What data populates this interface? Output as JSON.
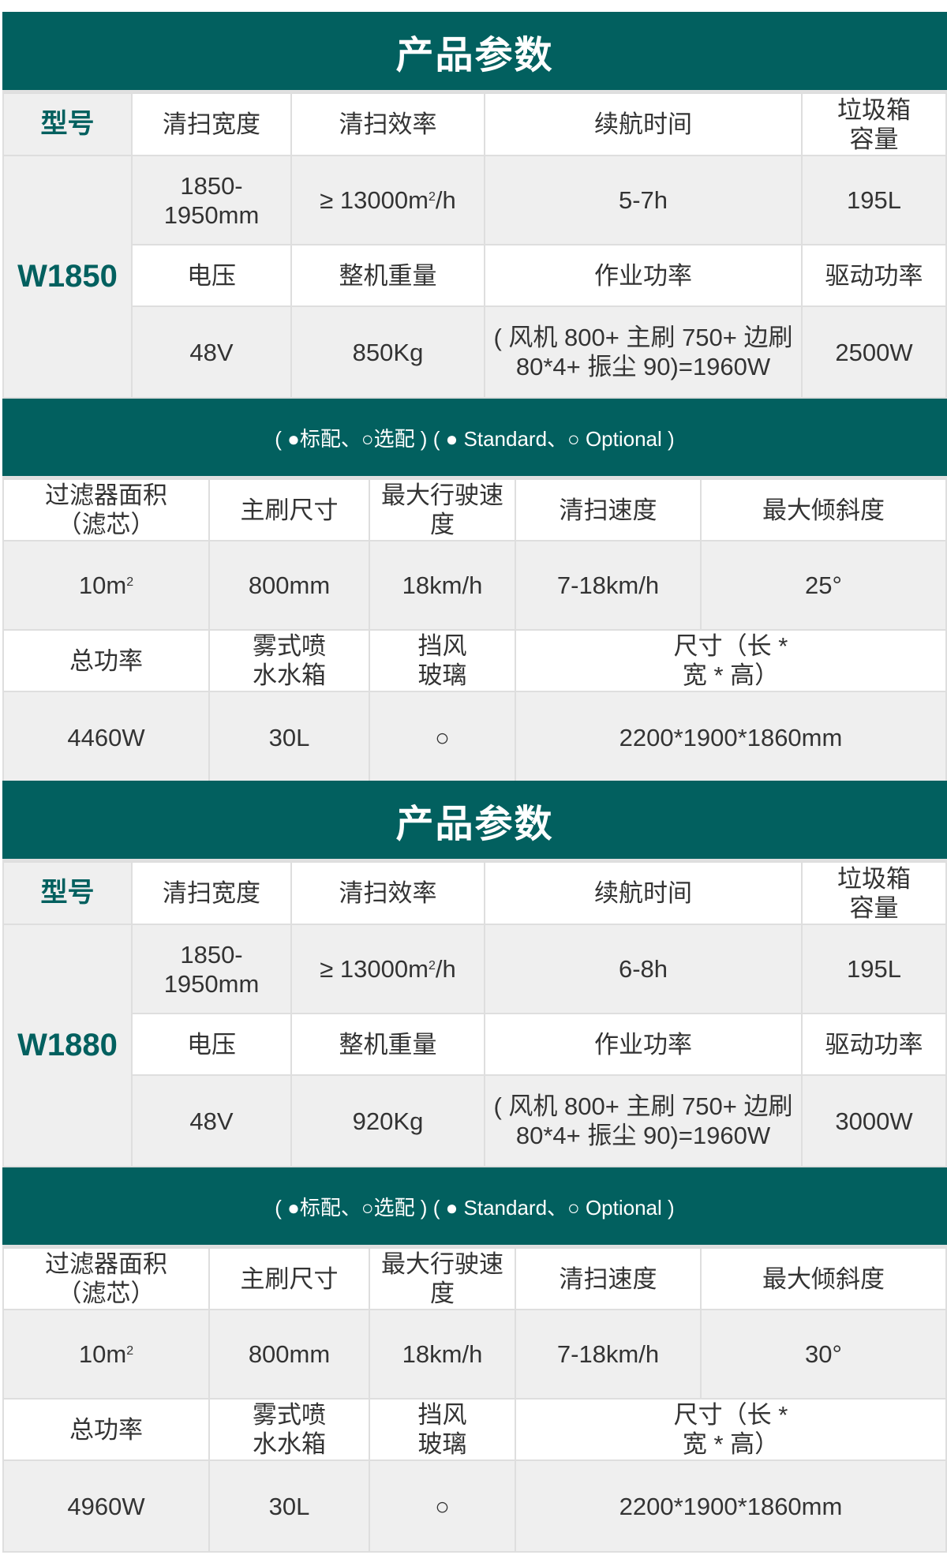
{
  "sections": [
    {
      "title": "产品参数",
      "model_label": "型号",
      "model": "W1850",
      "row1_headers": [
        "清扫宽度",
        "清扫效率",
        "续航时间",
        "垃圾箱容量"
      ],
      "row1_values": [
        "1850-1950mm",
        "≥ 13000m",
        "5-7h",
        "195L"
      ],
      "efficiency_unit": "/h",
      "row2_headers": [
        "电压",
        "整机重量",
        "作业功率",
        "驱动功率"
      ],
      "row2_values": [
        "48V",
        "850Kg",
        "( 风机 800+ 主刷 750+ 边刷 80*4+ 振尘 90)=1960W",
        "2500W"
      ],
      "legend": "( ●标配、○选配 ) ( ● Standard、○ Optional )",
      "row3_headers": [
        "过滤器面积（滤芯）",
        "主刷尺寸",
        "最大行驶速度",
        "清扫速度",
        "最大倾斜度"
      ],
      "row3_values": [
        "10m",
        "800mm",
        "18km/h",
        "7-18km/h",
        "25°"
      ],
      "row4_headers": [
        "总功率",
        "雾式喷水水箱",
        "挡风玻璃",
        "尺寸（长 * 宽 * 高）"
      ],
      "row4_values": [
        "4460W",
        "30L",
        "○",
        "2200*1900*1860mm"
      ],
      "superscript": "2"
    },
    {
      "title": "产品参数",
      "model_label": "型号",
      "model": "W1880",
      "row1_headers": [
        "清扫宽度",
        "清扫效率",
        "续航时间",
        "垃圾箱容量"
      ],
      "row1_values": [
        "1850-1950mm",
        "≥ 13000m",
        "6-8h",
        "195L"
      ],
      "efficiency_unit": "/h",
      "row2_headers": [
        "电压",
        "整机重量",
        "作业功率",
        "驱动功率"
      ],
      "row2_values": [
        "48V",
        "920Kg",
        "( 风机 800+ 主刷 750+ 边刷 80*4+ 振尘 90)=1960W",
        "3000W"
      ],
      "legend": "( ●标配、○选配 ) ( ● Standard、○ Optional )",
      "row3_headers": [
        "过滤器面积（滤芯）",
        "主刷尺寸",
        "最大行驶速度",
        "清扫速度",
        "最大倾斜度"
      ],
      "row3_values": [
        "10m",
        "800mm",
        "18km/h",
        "7-18km/h",
        "30°"
      ],
      "row4_headers": [
        "总功率",
        "雾式喷水水箱",
        "挡风玻璃",
        "尺寸（长 * 宽 * 高）"
      ],
      "row4_values": [
        "4960W",
        "30L",
        "○",
        "2200*1900*1860mm"
      ],
      "superscript": "2"
    }
  ],
  "colors": {
    "accent": "#02605f",
    "cell_gray": "#efefef"
  }
}
